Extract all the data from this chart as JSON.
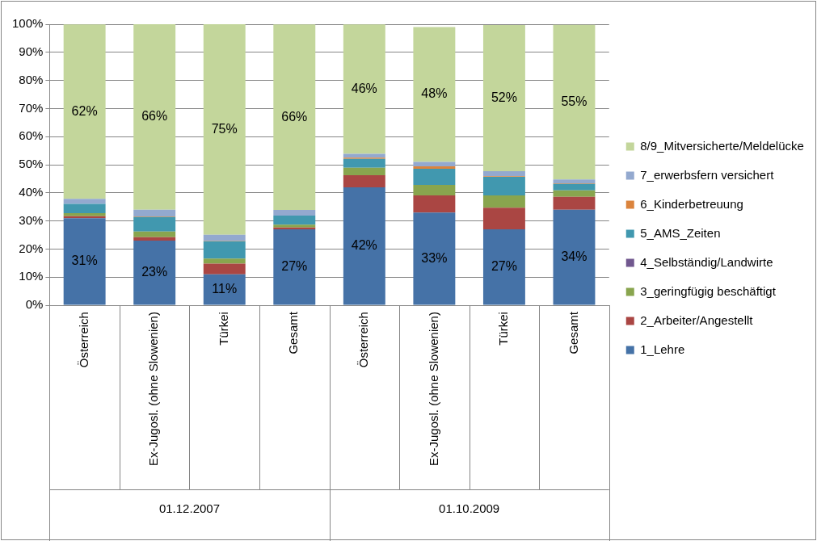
{
  "chart_data": {
    "type": "bar",
    "stacked": true,
    "categories": [
      "Österreich",
      "Ex-Jugosl. (ohne Slowenien)",
      "Türkei",
      "Gesamt",
      "Österreich",
      "Ex-Jugosl. (ohne Slowenien)",
      "Türkei",
      "Gesamt"
    ],
    "series": [
      {
        "name": "1_Lehre",
        "color": "#4572a7",
        "values": [
          31,
          23,
          11,
          27,
          42,
          33,
          27,
          34
        ],
        "value_labels": [
          "31%",
          "23%",
          "11%",
          "27%",
          "42%",
          "33%",
          "27%",
          "34%"
        ]
      },
      {
        "name": "2_Arbeiter/Angestellt",
        "color": "#aa4643",
        "values": [
          0.7,
          1.2,
          3.8,
          0.7,
          4.3,
          6.1,
          7.7,
          4.6
        ]
      },
      {
        "name": "3_geringfügig beschäftigt",
        "color": "#89a54e",
        "values": [
          1.1,
          2.0,
          1.8,
          1.0,
          2.6,
          3.7,
          4.4,
          2.3
        ]
      },
      {
        "name": "4_Selbständig/Landwirte",
        "color": "#71588f",
        "values": [
          0,
          0,
          0,
          0,
          0,
          0,
          0,
          0
        ]
      },
      {
        "name": "5_AMS_Zeiten",
        "color": "#4198af",
        "values": [
          3.3,
          5.2,
          6.2,
          3.2,
          3.2,
          5.8,
          6.6,
          2.3
        ]
      },
      {
        "name": "6_Kinderbetreuung",
        "color": "#db843d",
        "values": [
          0,
          0.2,
          0.1,
          0,
          0.4,
          0.8,
          0.2,
          0.2
        ]
      },
      {
        "name": "7_erwerbsfern versichert",
        "color": "#93a9cf",
        "values": [
          1.8,
          2.4,
          2.2,
          2.0,
          1.4,
          1.6,
          1.8,
          1.4
        ]
      },
      {
        "name": "8/9_Mitversicherte/Meldelücke",
        "color": "#c3d69b",
        "values": [
          62,
          66,
          75,
          66,
          46,
          48,
          52,
          55
        ],
        "value_labels": [
          "62%",
          "66%",
          "75%",
          "66%",
          "46%",
          "48%",
          "52%",
          "55%"
        ]
      }
    ],
    "annotations": [
      "01.12.2007",
      "01.10.2009"
    ],
    "ylim": [
      0,
      100
    ],
    "yticks": [
      {
        "value": 0,
        "label": "0%"
      },
      {
        "value": 10,
        "label": "10%"
      },
      {
        "value": 20,
        "label": "20%"
      },
      {
        "value": 30,
        "label": "30%"
      },
      {
        "value": 40,
        "label": "40%"
      },
      {
        "value": 50,
        "label": "50%"
      },
      {
        "value": 60,
        "label": "60%"
      },
      {
        "value": 70,
        "label": "70%"
      },
      {
        "value": 80,
        "label": "80%"
      },
      {
        "value": 90,
        "label": "90%"
      },
      {
        "value": 100,
        "label": "100%"
      }
    ],
    "grid": "y",
    "legend": "right"
  }
}
